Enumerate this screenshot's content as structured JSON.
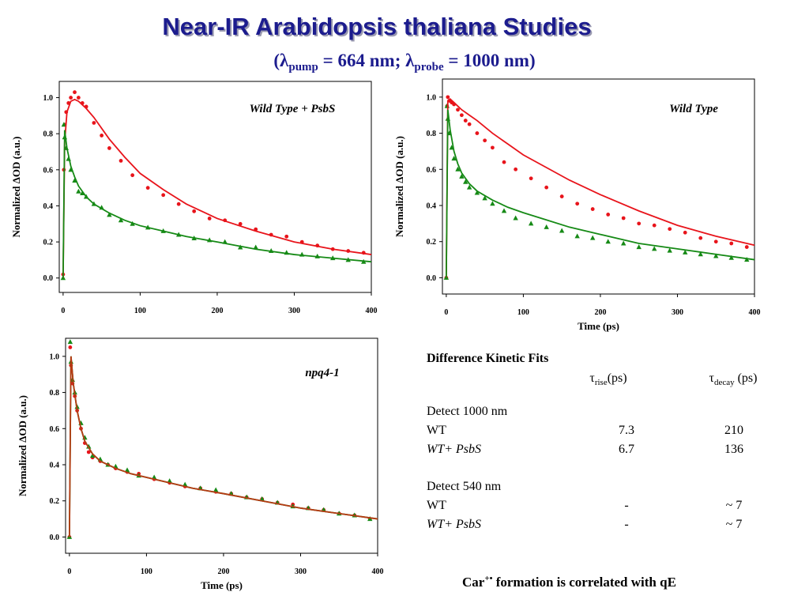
{
  "header": {
    "title": "Near-IR Arabidopsis thaliana Studies",
    "subtitle": [
      "(λ",
      "pump",
      " = 664 nm; λ",
      "probe",
      " = 1000 nm)"
    ]
  },
  "chart_data": [
    {
      "type": "scatter",
      "annotation": "Wild Type + PsbS",
      "ylabel": "Normalized ΔOD (a.u.)",
      "xlim": [
        -5,
        400
      ],
      "xticks": [
        0,
        100,
        200,
        300,
        400
      ],
      "ylim": [
        -0.08,
        1.09
      ],
      "yticks": [
        {
          "value": 0,
          "label": "0.0"
        },
        0.2,
        0.4,
        0.6,
        0.8,
        {
          "value": 1,
          "label": "1.0"
        }
      ],
      "series": [
        {
          "mode": "markers",
          "marker": "circle",
          "color": "#e8141b",
          "x": [
            0,
            1,
            2,
            4,
            7,
            10,
            15,
            20,
            25,
            30,
            40,
            50,
            60,
            75,
            90,
            110,
            130,
            150,
            170,
            190,
            210,
            230,
            250,
            270,
            290,
            310,
            330,
            350,
            370,
            390
          ],
          "values": [
            0.02,
            0.6,
            0.85,
            0.92,
            0.97,
            1.0,
            1.03,
            1.0,
            0.97,
            0.95,
            0.86,
            0.79,
            0.72,
            0.65,
            0.57,
            0.5,
            0.46,
            0.41,
            0.37,
            0.33,
            0.32,
            0.3,
            0.27,
            0.24,
            0.23,
            0.2,
            0.18,
            0.16,
            0.15,
            0.14
          ]
        },
        {
          "mode": "markers",
          "marker": "triangle",
          "color": "#168a16",
          "x": [
            0,
            1,
            2,
            4,
            7,
            10,
            15,
            20,
            25,
            30,
            40,
            50,
            60,
            75,
            90,
            110,
            130,
            150,
            170,
            190,
            210,
            230,
            250,
            270,
            290,
            310,
            330,
            350,
            370,
            390
          ],
          "values": [
            0.0,
            0.85,
            0.78,
            0.72,
            0.66,
            0.6,
            0.54,
            0.48,
            0.47,
            0.45,
            0.41,
            0.39,
            0.35,
            0.32,
            0.3,
            0.28,
            0.26,
            0.24,
            0.22,
            0.21,
            0.2,
            0.17,
            0.17,
            0.15,
            0.14,
            0.13,
            0.12,
            0.11,
            0.1,
            0.09
          ]
        },
        {
          "mode": "line",
          "color": "#e8141b",
          "x": [
            0,
            2,
            5,
            10,
            15,
            20,
            30,
            40,
            60,
            80,
            100,
            130,
            160,
            200,
            250,
            300,
            350,
            400
          ],
          "values": [
            0,
            0.75,
            0.92,
            0.98,
            0.99,
            0.98,
            0.94,
            0.89,
            0.77,
            0.67,
            0.58,
            0.49,
            0.41,
            0.33,
            0.26,
            0.2,
            0.16,
            0.13
          ]
        },
        {
          "mode": "line",
          "color": "#168a16",
          "x": [
            0,
            2,
            5,
            10,
            15,
            20,
            30,
            40,
            60,
            80,
            100,
            130,
            160,
            200,
            250,
            300,
            350,
            400
          ],
          "values": [
            0,
            0.82,
            0.72,
            0.62,
            0.56,
            0.51,
            0.45,
            0.41,
            0.36,
            0.32,
            0.29,
            0.26,
            0.23,
            0.2,
            0.16,
            0.13,
            0.11,
            0.09
          ]
        }
      ]
    },
    {
      "type": "scatter",
      "annotation": "Wild Type",
      "ylabel": "Normalized ΔOD (a.u.)",
      "xlabel": "Time (ps)",
      "xlim": [
        -5,
        400
      ],
      "xticks": [
        0,
        100,
        200,
        300,
        400
      ],
      "ylim": [
        -0.09,
        1.1
      ],
      "yticks": [
        {
          "value": 0,
          "label": "0.0"
        },
        0.2,
        0.4,
        0.6,
        0.8,
        {
          "value": 1,
          "label": "1.0"
        }
      ],
      "series": [
        {
          "mode": "markers",
          "marker": "circle",
          "color": "#e8141b",
          "x": [
            0,
            1,
            2,
            4,
            7,
            10,
            15,
            20,
            25,
            30,
            40,
            50,
            60,
            75,
            90,
            110,
            130,
            150,
            170,
            190,
            210,
            230,
            250,
            270,
            290,
            310,
            330,
            350,
            370,
            390
          ],
          "values": [
            0.0,
            0.95,
            1.0,
            0.98,
            0.97,
            0.96,
            0.93,
            0.9,
            0.87,
            0.85,
            0.8,
            0.76,
            0.72,
            0.64,
            0.6,
            0.55,
            0.5,
            0.45,
            0.41,
            0.38,
            0.35,
            0.33,
            0.3,
            0.29,
            0.27,
            0.25,
            0.22,
            0.2,
            0.19,
            0.17
          ]
        },
        {
          "mode": "markers",
          "marker": "triangle",
          "color": "#168a16",
          "x": [
            0,
            1,
            2,
            4,
            7,
            10,
            15,
            20,
            25,
            30,
            40,
            50,
            60,
            75,
            90,
            110,
            130,
            150,
            170,
            190,
            210,
            230,
            250,
            270,
            290,
            310,
            330,
            350,
            370,
            390
          ],
          "values": [
            0.0,
            0.95,
            0.88,
            0.8,
            0.72,
            0.66,
            0.6,
            0.56,
            0.53,
            0.5,
            0.47,
            0.44,
            0.41,
            0.37,
            0.33,
            0.3,
            0.28,
            0.26,
            0.23,
            0.22,
            0.2,
            0.19,
            0.17,
            0.16,
            0.15,
            0.14,
            0.13,
            0.12,
            0.11,
            0.1
          ]
        },
        {
          "mode": "line",
          "color": "#e8141b",
          "x": [
            0,
            2,
            5,
            10,
            15,
            20,
            30,
            40,
            60,
            80,
            100,
            130,
            160,
            200,
            250,
            300,
            350,
            400
          ],
          "values": [
            0,
            0.98,
            0.99,
            0.97,
            0.95,
            0.93,
            0.9,
            0.87,
            0.8,
            0.74,
            0.68,
            0.61,
            0.54,
            0.46,
            0.37,
            0.29,
            0.23,
            0.18
          ]
        },
        {
          "mode": "line",
          "color": "#168a16",
          "x": [
            0,
            2,
            5,
            10,
            15,
            20,
            30,
            40,
            60,
            80,
            100,
            130,
            160,
            200,
            250,
            300,
            350,
            400
          ],
          "values": [
            0,
            0.93,
            0.82,
            0.7,
            0.63,
            0.58,
            0.52,
            0.48,
            0.43,
            0.39,
            0.36,
            0.32,
            0.28,
            0.24,
            0.19,
            0.16,
            0.13,
            0.1
          ]
        }
      ]
    },
    {
      "type": "scatter",
      "annotation": "npq4-1",
      "ylabel": "Normalized ΔOD (a.u.)",
      "xlabel": "Time (ps)",
      "xlim": [
        -5,
        400
      ],
      "xticks": [
        0,
        100,
        200,
        300,
        400
      ],
      "ylim": [
        -0.09,
        1.1
      ],
      "yticks": [
        {
          "value": 0,
          "label": "0.0"
        },
        0.2,
        0.4,
        0.6,
        0.8,
        {
          "value": 1,
          "label": "1.0"
        }
      ],
      "series": [
        {
          "mode": "markers",
          "marker": "circle",
          "color": "#e8141b",
          "x": [
            0,
            1,
            2,
            4,
            7,
            10,
            15,
            20,
            25,
            30,
            40,
            50,
            60,
            75,
            90,
            110,
            130,
            150,
            170,
            190,
            210,
            230,
            250,
            270,
            290,
            310,
            330,
            350,
            370,
            390
          ],
          "values": [
            0.0,
            1.05,
            0.95,
            0.85,
            0.78,
            0.7,
            0.6,
            0.52,
            0.47,
            0.44,
            0.42,
            0.4,
            0.38,
            0.36,
            0.35,
            0.32,
            0.3,
            0.28,
            0.27,
            0.25,
            0.24,
            0.22,
            0.21,
            0.19,
            0.18,
            0.16,
            0.15,
            0.13,
            0.12,
            0.1
          ]
        },
        {
          "mode": "markers",
          "marker": "triangle",
          "color": "#168a16",
          "x": [
            0,
            1,
            2,
            4,
            7,
            10,
            15,
            20,
            25,
            30,
            40,
            50,
            60,
            75,
            90,
            110,
            130,
            150,
            170,
            190,
            210,
            230,
            250,
            270,
            290,
            310,
            330,
            350,
            370,
            390
          ],
          "values": [
            0.0,
            1.08,
            0.97,
            0.87,
            0.8,
            0.72,
            0.63,
            0.55,
            0.5,
            0.45,
            0.43,
            0.4,
            0.39,
            0.37,
            0.34,
            0.33,
            0.31,
            0.29,
            0.27,
            0.26,
            0.24,
            0.22,
            0.21,
            0.19,
            0.17,
            0.16,
            0.15,
            0.13,
            0.12,
            0.1
          ]
        },
        {
          "mode": "line",
          "color": "#168a16",
          "x": [
            0,
            2,
            5,
            10,
            15,
            20,
            30,
            40,
            60,
            80,
            100,
            130,
            160,
            200,
            250,
            300,
            350,
            400
          ],
          "values": [
            0,
            1.0,
            0.85,
            0.7,
            0.6,
            0.53,
            0.46,
            0.42,
            0.38,
            0.35,
            0.33,
            0.3,
            0.27,
            0.24,
            0.2,
            0.16,
            0.13,
            0.1
          ]
        },
        {
          "mode": "line",
          "color": "#b83a14",
          "x": [
            0,
            2,
            5,
            10,
            15,
            20,
            30,
            40,
            60,
            80,
            100,
            130,
            160,
            200,
            250,
            300,
            350,
            400
          ],
          "values": [
            0,
            1.0,
            0.85,
            0.7,
            0.6,
            0.53,
            0.46,
            0.42,
            0.38,
            0.35,
            0.33,
            0.3,
            0.27,
            0.24,
            0.2,
            0.16,
            0.13,
            0.1
          ]
        }
      ]
    }
  ],
  "table": {
    "title": "Difference Kinetic Fits",
    "headers": [
      {
        "symbol": "τ",
        "sub": "rise",
        "unit": "(ps)"
      },
      {
        "symbol": "τ",
        "sub": "decay",
        "unit": " (ps)"
      }
    ],
    "groups": [
      {
        "label": "Detect 1000 nm",
        "rows": [
          [
            "WT",
            7.3,
            210
          ],
          [
            "WT+ PsbS",
            6.7,
            136
          ]
        ]
      },
      {
        "label": "Detect 540 nm",
        "rows": [
          [
            "WT",
            "-",
            "~ 7"
          ],
          [
            "WT+ PsbS",
            "-",
            "~ 7"
          ]
        ]
      }
    ]
  },
  "footer": [
    "Car",
    "+•",
    " formation is correlated with qE"
  ]
}
